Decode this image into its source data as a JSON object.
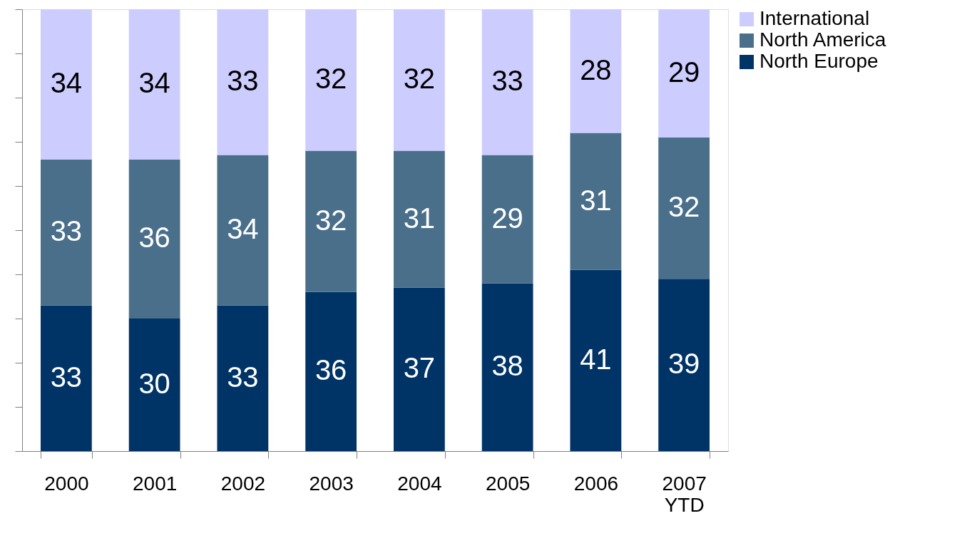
{
  "chart_data": {
    "type": "bar",
    "stacked": true,
    "categories": [
      "2000",
      "2001",
      "2002",
      "2003",
      "2004",
      "2005",
      "2006",
      "2007 YTD"
    ],
    "series": [
      {
        "name": "North Europe",
        "color": "#003366",
        "values": [
          33,
          30,
          33,
          36,
          37,
          38,
          41,
          39
        ]
      },
      {
        "name": "North America",
        "color": "#4a6f8a",
        "values": [
          33,
          36,
          34,
          32,
          31,
          29,
          31,
          32
        ]
      },
      {
        "name": "International",
        "color": "#ccccff",
        "values": [
          34,
          34,
          33,
          32,
          32,
          33,
          28,
          29
        ]
      }
    ],
    "ylim": [
      0,
      100
    ],
    "yticks": [
      {
        "value": 0,
        "label": null
      },
      {
        "value": 10,
        "label": null
      },
      {
        "value": 20,
        "label": null
      },
      {
        "value": 30,
        "label": null
      },
      {
        "value": 40,
        "label": null
      },
      {
        "value": 50,
        "label": null
      },
      {
        "value": 60,
        "label": null
      },
      {
        "value": 70,
        "label": null
      },
      {
        "value": 80,
        "label": null
      },
      {
        "value": 90,
        "label": null
      },
      {
        "value": 100,
        "label": null
      }
    ],
    "tick_labels": "x",
    "data_labels": true,
    "grid": false,
    "legend": "right"
  }
}
